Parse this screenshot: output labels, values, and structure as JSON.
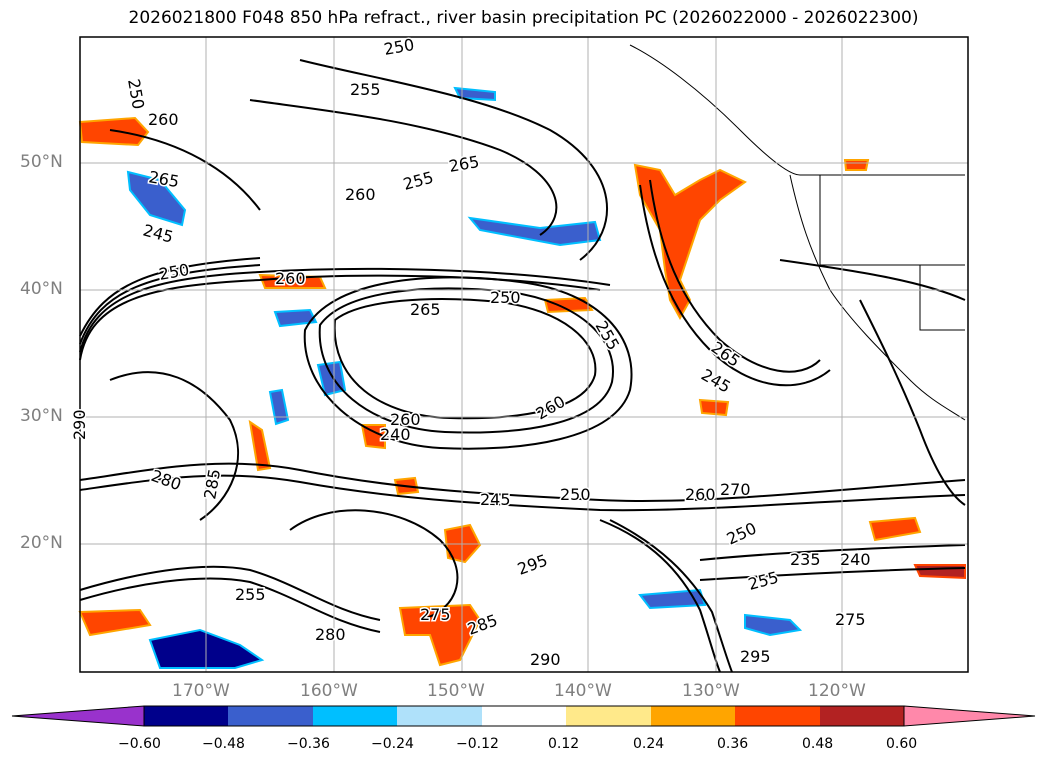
{
  "title": "2026021800 F048 850 hPa refract., river basin precipitation PC (2026022000 - 2026022300)",
  "map": {
    "lat_labels": [
      "50°N",
      "40°N",
      "30°N",
      "20°N"
    ],
    "lon_labels": [
      "170°W",
      "160°W",
      "150°W",
      "140°W",
      "130°W",
      "120°W"
    ],
    "contour_labels": [
      "250",
      "260",
      "265",
      "245",
      "250",
      "255",
      "260",
      "255",
      "265",
      "250",
      "260",
      "265",
      "250",
      "255",
      "260",
      "265",
      "245",
      "250",
      "255",
      "260",
      "240",
      "245",
      "250",
      "235",
      "240",
      "255",
      "260",
      "270",
      "275",
      "280",
      "285",
      "290",
      "295",
      "275",
      "280",
      "285",
      "290",
      "295"
    ],
    "gridlines": true,
    "coastlines": true
  },
  "colorbar": {
    "ticks": [
      "−0.60",
      "−0.48",
      "−0.36",
      "−0.24",
      "−0.12",
      "0.12",
      "0.24",
      "0.36",
      "0.48",
      "0.60"
    ],
    "colors": [
      "#9932cc",
      "#00008b",
      "#3a5fcd",
      "#00bfff",
      "#afe1fa",
      "#ffffff",
      "#ffe98a",
      "#ffa500",
      "#ff4500",
      "#b22222",
      "#ff88aa"
    ]
  }
}
